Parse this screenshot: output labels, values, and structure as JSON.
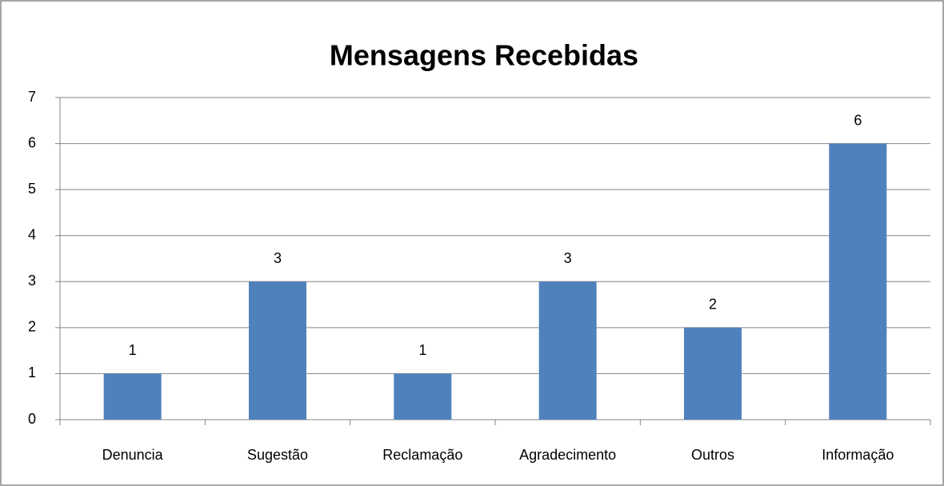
{
  "chart_data": {
    "type": "bar",
    "title": "Mensagens Recebidas",
    "categories": [
      "Denuncia",
      "Sugestão",
      "Reclamação",
      "Agradecimento",
      "Outros",
      "Informação"
    ],
    "values": [
      1,
      3,
      1,
      3,
      2,
      6
    ],
    "color": "#4f81bd",
    "ylim": [
      0,
      7
    ],
    "yticks": [
      0,
      1,
      2,
      3,
      4,
      5,
      6,
      7
    ],
    "grid": true,
    "data_labels": true
  }
}
